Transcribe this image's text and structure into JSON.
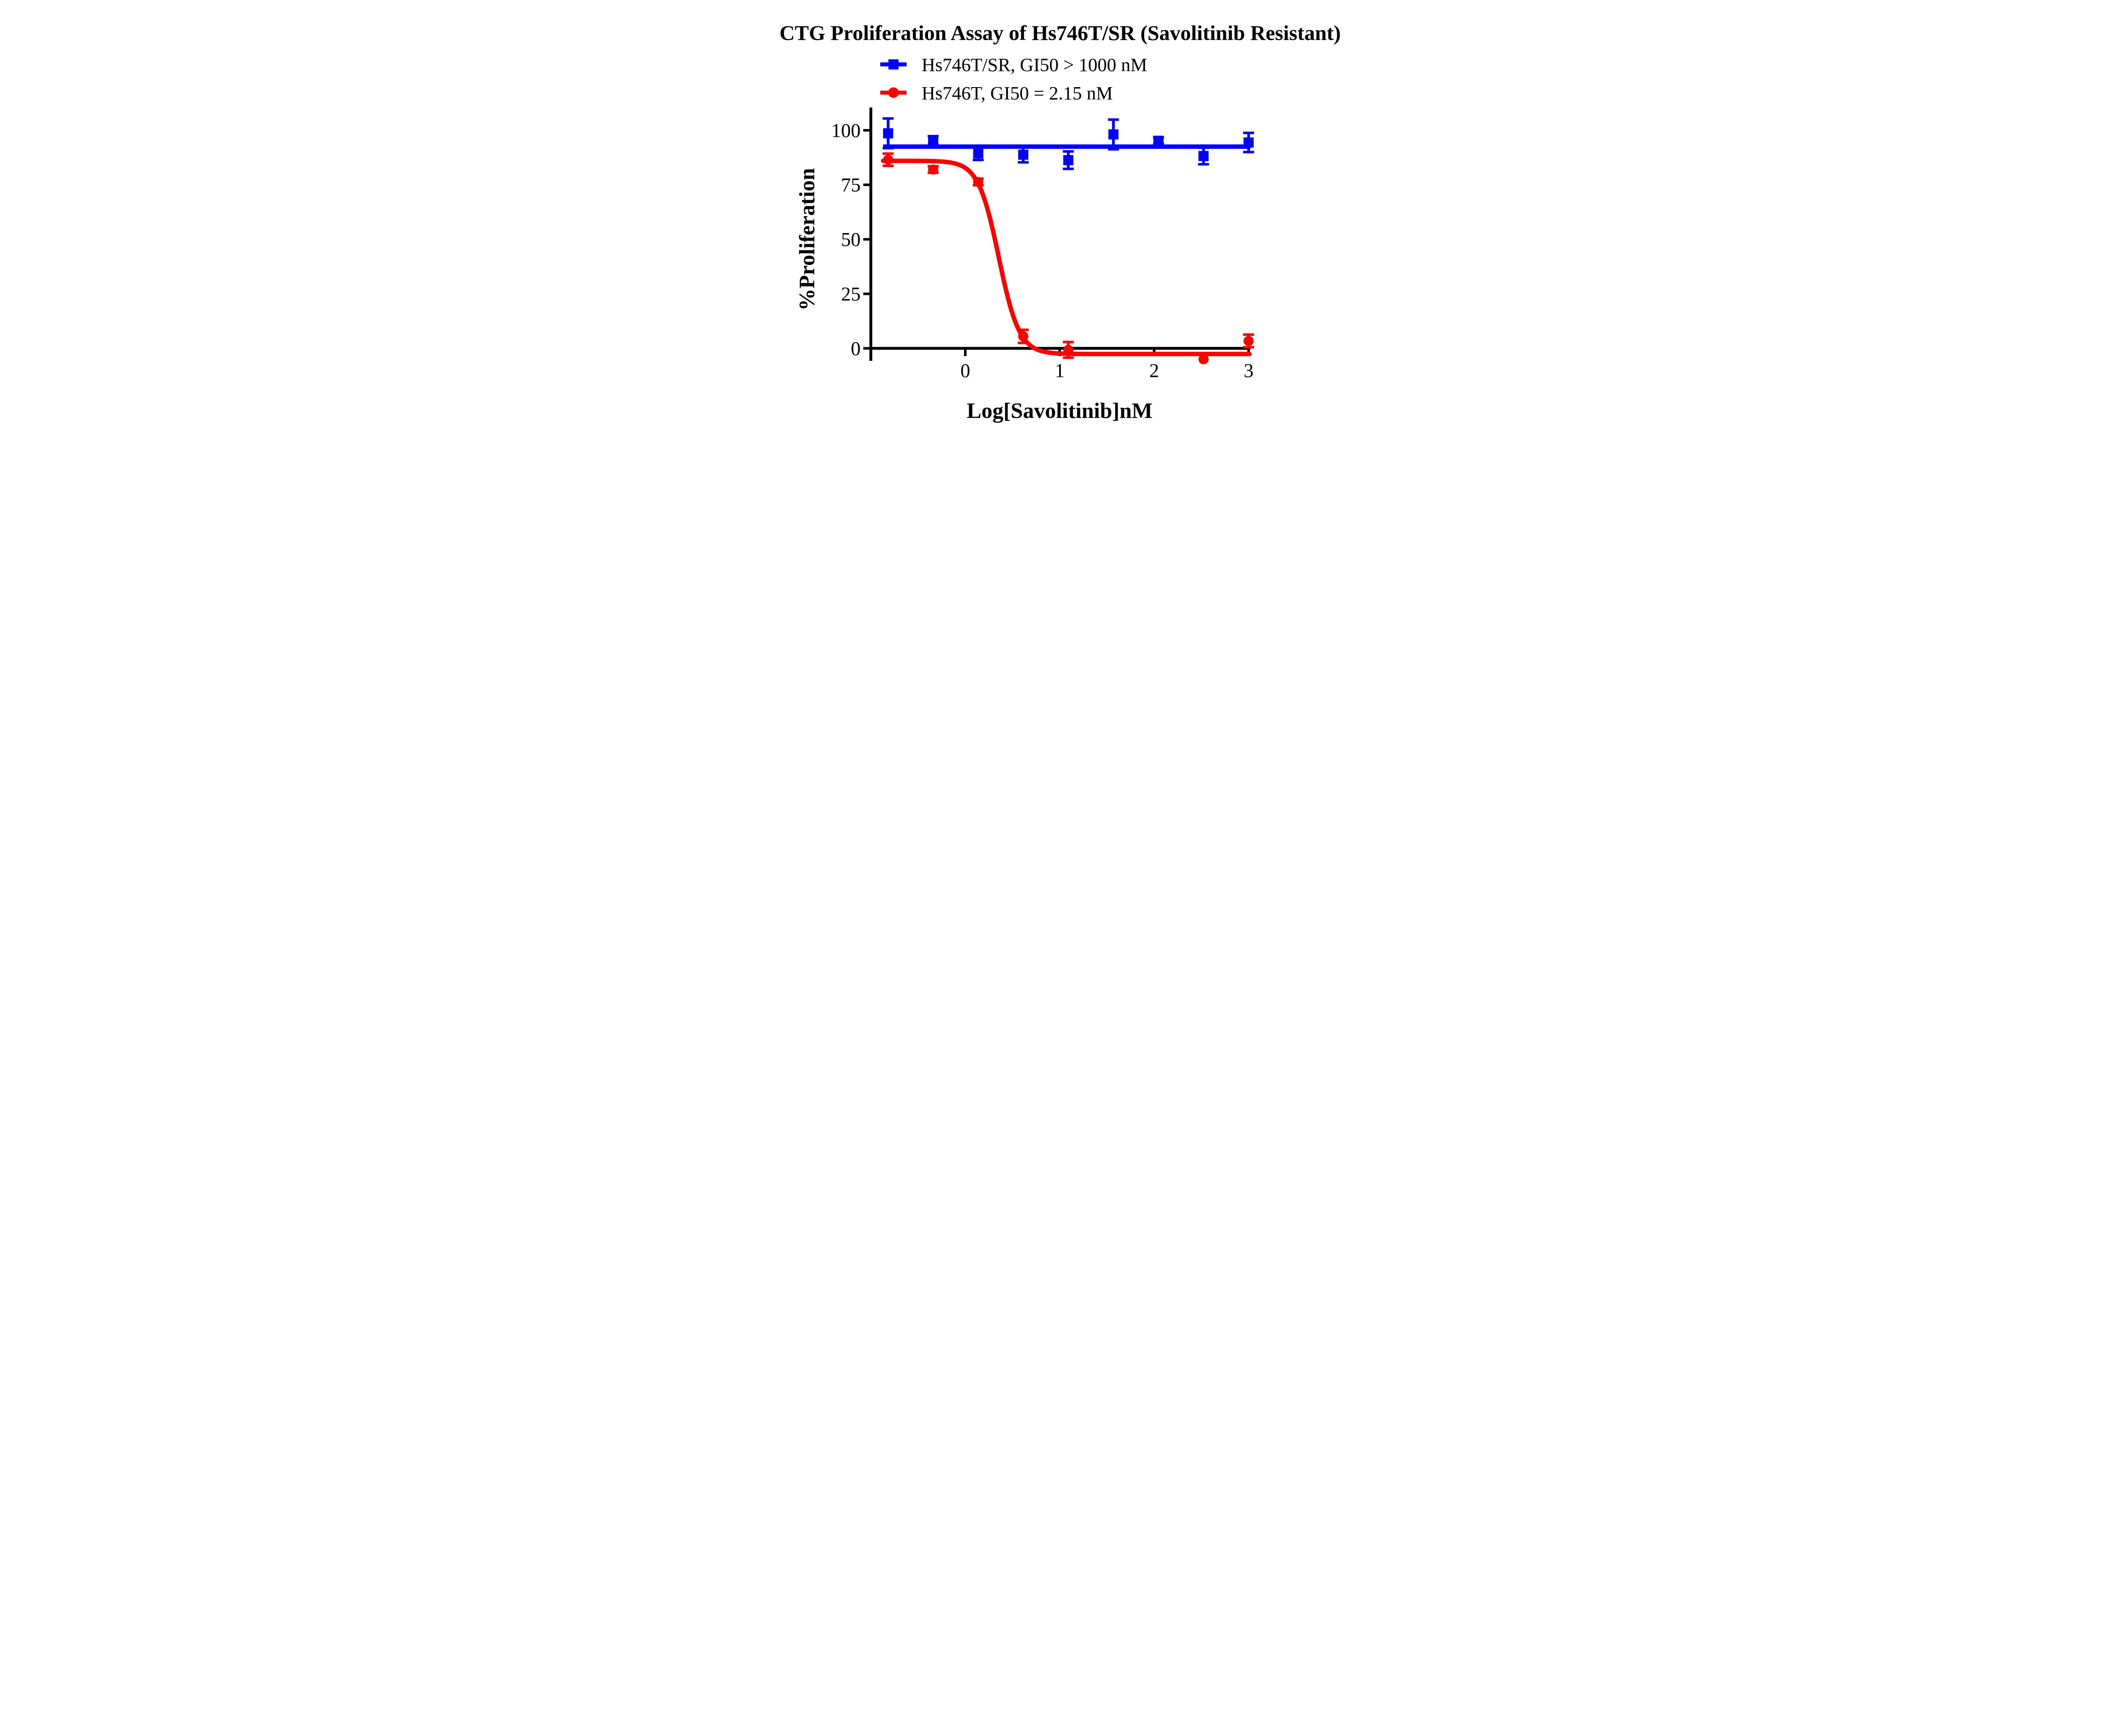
{
  "figure": {
    "title": "CTG Proliferation Assay of Hs746T/SR (Savolitinib Resistant)",
    "x_axis_title": "Log[Savolitinib]nM",
    "y_axis_title": "%Proliferation",
    "background_color": "#ffffff",
    "axis_color": "#000000"
  },
  "legend": [
    {
      "label": "Hs746T/SR, GI50 > 1000 nM",
      "color": "#0000fe",
      "marker": "square"
    },
    {
      "label": "Hs746T, GI50 = 2.15 nM",
      "color": "#fe0000",
      "marker": "circle"
    }
  ],
  "chart_data": {
    "type": "scatter",
    "title": "CTG Proliferation Assay of Hs746T/SR (Savolitinib Resistant)",
    "xlabel": "Log[Savolitinib]nM",
    "ylabel": "%Proliferation",
    "xlim": [
      -1.0,
      3.02
    ],
    "ylim": [
      -6,
      110
    ],
    "x_ticks": [
      0,
      1,
      2,
      3
    ],
    "y_ticks": [
      0,
      25,
      50,
      75,
      100
    ],
    "grid": false,
    "legend_position": "top",
    "series": [
      {
        "name": "Hs746T/SR, GI50 > 1000 nM",
        "color": "#0000fe",
        "marker": "square",
        "x": [
          -0.817,
          -0.34,
          0.137,
          0.614,
          1.091,
          1.569,
          2.046,
          2.523,
          3.0
        ],
        "y": [
          98.6,
          95.3,
          89.4,
          88.8,
          86.3,
          98.1,
          95.2,
          88.2,
          94.4
        ],
        "yerr": [
          6.8,
          2.0,
          3.0,
          3.5,
          4.0,
          6.8,
          1.5,
          3.8,
          4.4
        ],
        "fit": {
          "type": "flat",
          "y": 92.5,
          "x_start": -0.87,
          "x_end": 3.02
        }
      },
      {
        "name": "Hs746T, GI50 = 2.15 nM",
        "color": "#fe0000",
        "marker": "circle",
        "x": [
          -0.817,
          -0.34,
          0.137,
          0.614,
          1.091,
          2.523,
          3.0
        ],
        "y": [
          86.5,
          82.0,
          76.3,
          5.5,
          -0.7,
          -5.0,
          3.4
        ],
        "yerr": [
          2.8,
          1.5,
          1.5,
          3.0,
          3.6,
          0,
          2.9
        ],
        "fit": {
          "type": "logistic4",
          "top": 86.0,
          "bottom": -2.6,
          "log_ic50": 0.355,
          "hill": 4.0,
          "x_start": -0.87,
          "x_end": 3.02
        }
      }
    ]
  }
}
